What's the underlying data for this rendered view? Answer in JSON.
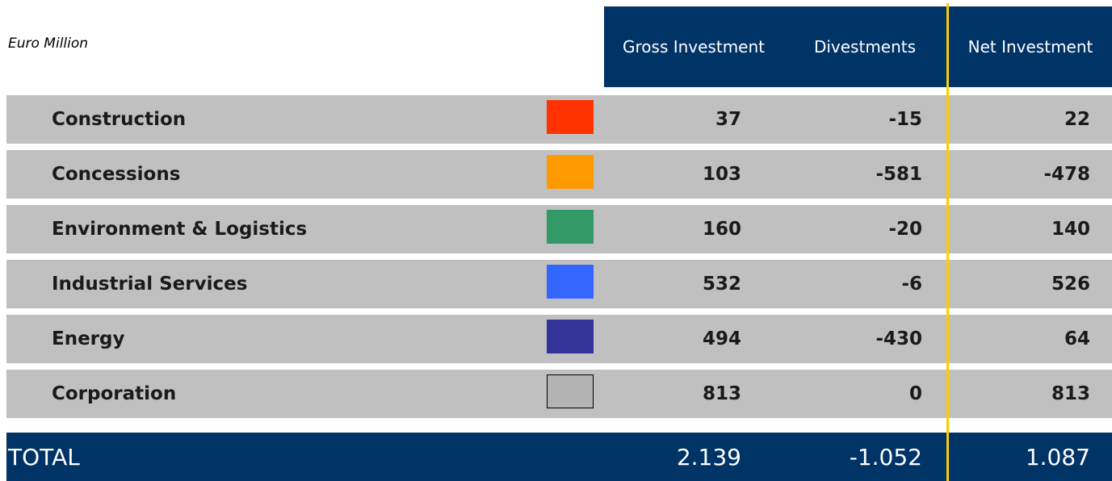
{
  "unit_note": "Euro Million",
  "columns": [
    "Gross Investment",
    "Divestments",
    "Net Investment"
  ],
  "rows": [
    {
      "label": "Construction",
      "color": "#ff3300",
      "values": [
        37,
        -15,
        22
      ]
    },
    {
      "label": "Concessions",
      "color": "#ff9900",
      "values": [
        103,
        -581,
        -478
      ]
    },
    {
      "label": "Environment & Logistics",
      "color": "#339966",
      "values": [
        160,
        -20,
        140
      ]
    },
    {
      "label": "Industrial Services",
      "color": "#3366ff",
      "values": [
        532,
        -6,
        526
      ]
    },
    {
      "label": "Energy",
      "color": "#333399",
      "values": [
        494,
        -430,
        64
      ]
    },
    {
      "label": "Corporation",
      "color": "#b3b3b3",
      "border": "#000000",
      "values": [
        813,
        0,
        813
      ]
    }
  ],
  "total": {
    "label": "TOTAL",
    "values": [
      "2.139",
      "-1.052",
      "1.087"
    ]
  }
}
